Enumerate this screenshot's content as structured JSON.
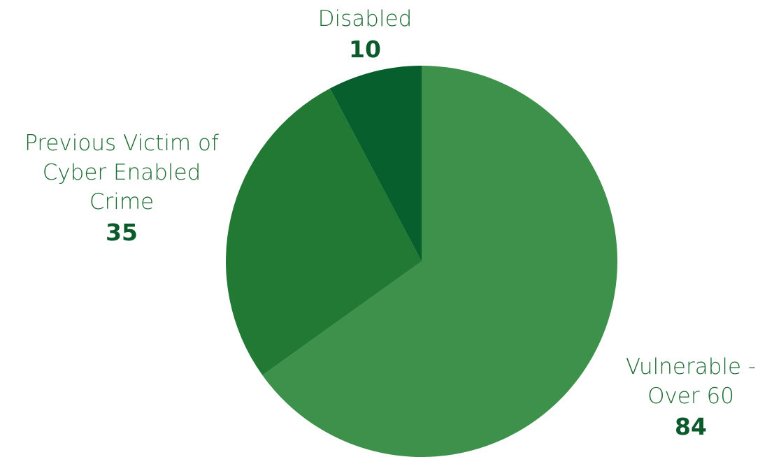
{
  "chart_data": {
    "type": "pie",
    "slices": [
      {
        "label": "Vulnerable - Over 60",
        "label_lines": [
          "Vulnerable -",
          "Over 60"
        ],
        "value": 84,
        "value_text": "84",
        "color": "#3d914a"
      },
      {
        "label": "Previous Victim of Cyber Enabled Crime",
        "label_lines": [
          "Previous Victim of",
          "Cyber Enabled",
          "Crime"
        ],
        "value": 35,
        "value_text": "35",
        "color": "#217934"
      },
      {
        "label": "Disabled",
        "label_lines": [
          "Disabled"
        ],
        "value": 10,
        "value_text": "10",
        "color": "#075f2e"
      }
    ],
    "start_angle_deg": 0,
    "direction": "clockwise"
  },
  "colors": {
    "label_text": "#1e6b33",
    "value_text": "#0b5a2b"
  }
}
